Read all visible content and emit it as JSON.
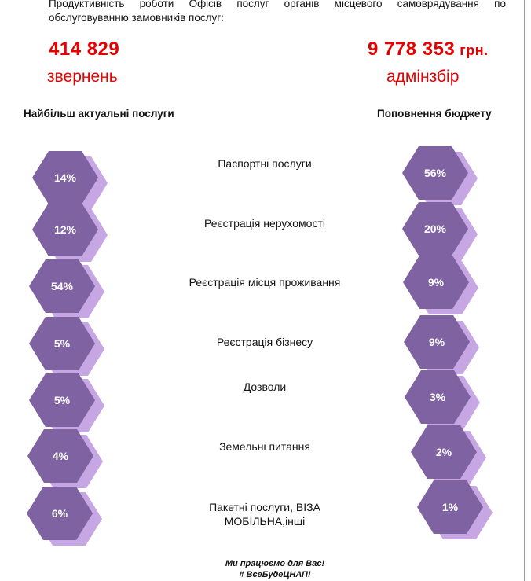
{
  "intro": {
    "line1": "Продуктивність роботи Офісів послуг органів місцевого самоврядування по",
    "line2": "обслуговуванню замовників послуг:"
  },
  "stats": {
    "requests": {
      "value": "414 829",
      "label": "звернень"
    },
    "budget": {
      "value": "9 778 353",
      "unit": "грн.",
      "label": "адмінзбір"
    }
  },
  "headings": {
    "left": "Найбільш актуальні послуги",
    "right": "Поповнення бюджету"
  },
  "services": [
    {
      "label": "Паспортні послуги",
      "share": "14%",
      "budget": "56%"
    },
    {
      "label": "Реєстрація нерухомості",
      "share": "12%",
      "budget": "20%"
    },
    {
      "label": "Реєстрація місця проживання",
      "share": "54%",
      "budget": "9%"
    },
    {
      "label": "Реєстрація бізнесу",
      "share": "5%",
      "budget": "9%"
    },
    {
      "label": "Дозволи",
      "share": "5%",
      "budget": "3%"
    },
    {
      "label": "Земельні питання",
      "share": "4%",
      "budget": "2%"
    },
    {
      "label": "Пакетні послуги, ВІЗА МОБІЛЬНА,інші",
      "share": "6%",
      "budget": "1%"
    }
  ],
  "footer": {
    "line1": "Ми працюємо для Вас!",
    "line2": "# ВсеБудеЦНАП!"
  },
  "colors": {
    "accent_red": "#e60000",
    "hex_fill": "#7f62a1",
    "hex_shadow": "#c6a7e4"
  }
}
